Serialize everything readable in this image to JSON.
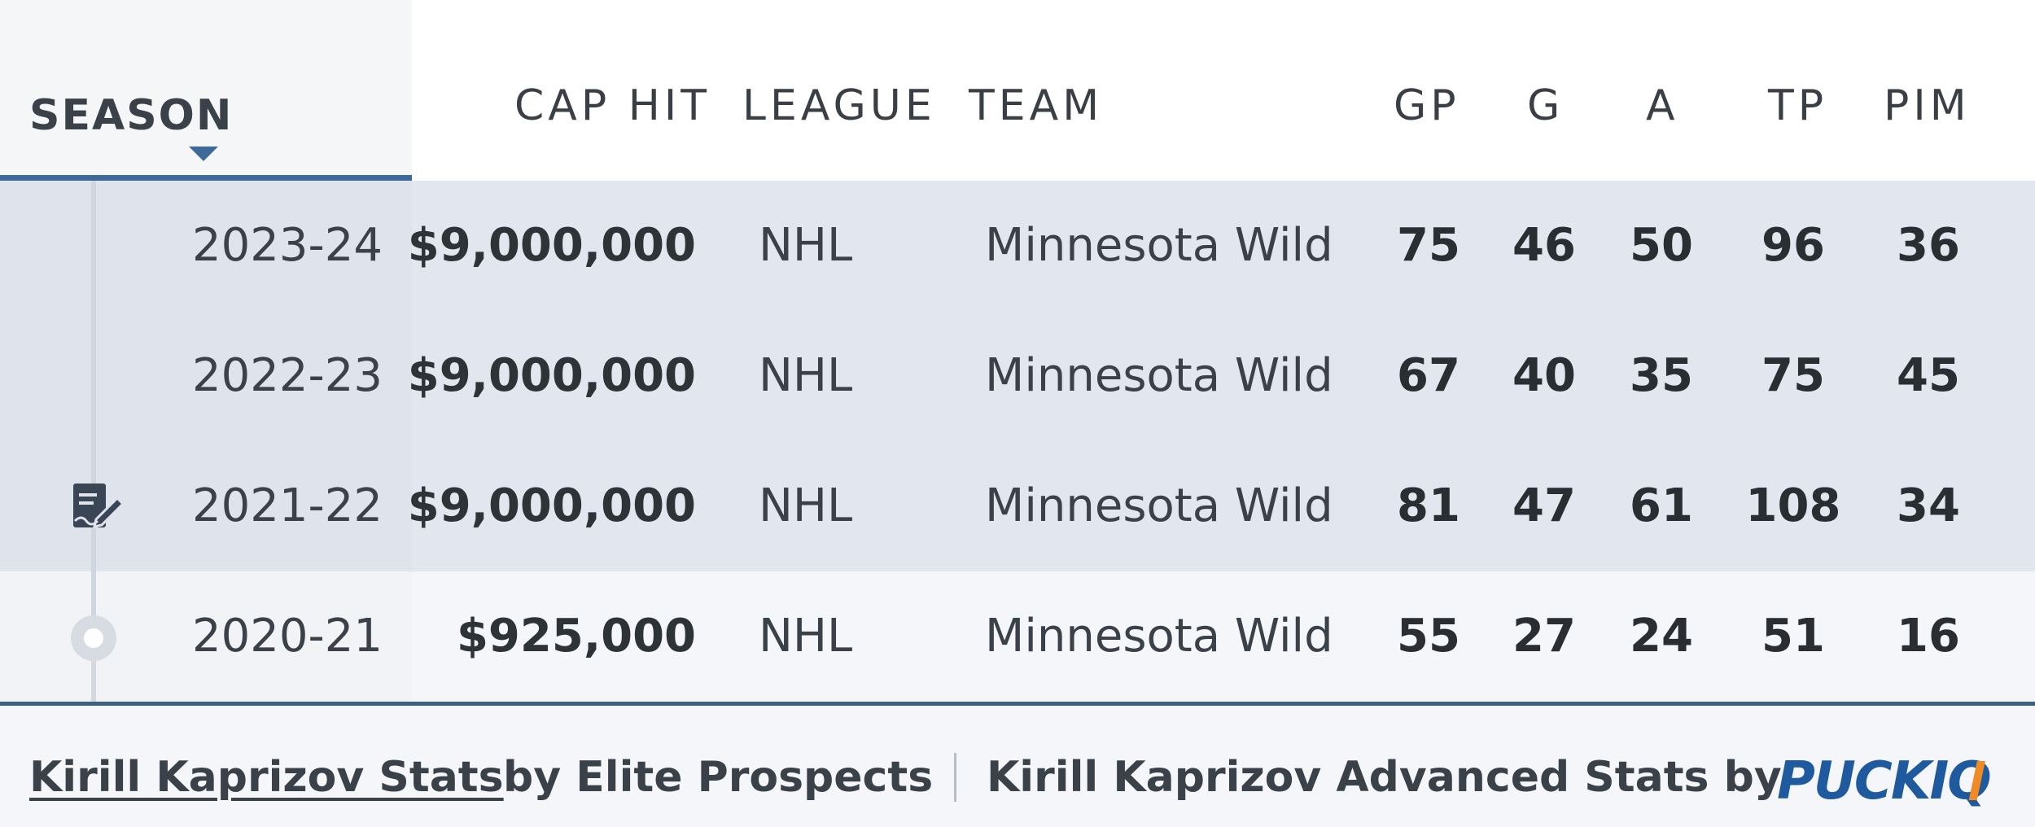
{
  "columns": {
    "season": "SEASON",
    "cap_hit": "CAP HIT",
    "league": "LEAGUE",
    "team": "TEAM",
    "gp": "GP",
    "g": "G",
    "a": "A",
    "tp": "TP",
    "pim": "PIM"
  },
  "sort": {
    "column": "SEASON",
    "direction": "descending"
  },
  "rows": [
    {
      "season": "2023-24",
      "cap_hit": "$9,000,000",
      "league": "NHL",
      "team": "Minnesota Wild",
      "gp": "75",
      "g": "46",
      "a": "50",
      "tp": "96",
      "pim": "36"
    },
    {
      "season": "2022-23",
      "cap_hit": "$9,000,000",
      "league": "NHL",
      "team": "Minnesota Wild",
      "gp": "67",
      "g": "40",
      "a": "35",
      "tp": "75",
      "pim": "45"
    },
    {
      "season": "2021-22",
      "cap_hit": "$9,000,000",
      "league": "NHL",
      "team": "Minnesota Wild",
      "gp": "81",
      "g": "47",
      "a": "61",
      "tp": "108",
      "pim": "34"
    },
    {
      "season": "2020-21",
      "cap_hit": "$925,000",
      "league": "NHL",
      "team": "Minnesota Wild",
      "gp": "55",
      "g": "27",
      "a": "24",
      "tp": "51",
      "pim": "16"
    }
  ],
  "icons": {
    "contract_signed": "contract-signed-icon",
    "timeline_start": "timeline-dot-icon",
    "sort": "sort-descending-icon"
  },
  "footer": {
    "stats_link": "Kirill Kaprizov Stats",
    "stats_by": "by Elite Prospects",
    "advanced": "Kirill Kaprizov Advanced Stats by",
    "logo": "PUCKIQ"
  },
  "colors": {
    "accent": "#3d6a99",
    "contract_row_bg": "#e2e7ef",
    "logo_blue": "#1f5a9e",
    "logo_orange": "#f08a24"
  }
}
